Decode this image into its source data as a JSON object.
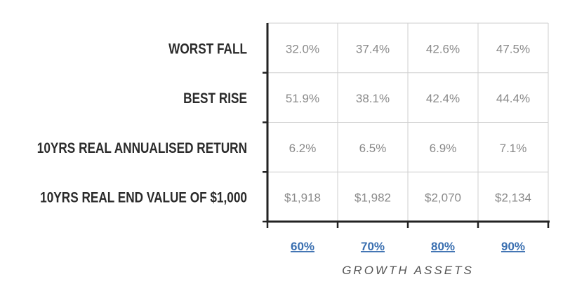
{
  "chart_data": {
    "type": "table",
    "row_labels": [
      "WORST FALL",
      "BEST RISE",
      "10YRS REAL ANNUALISED RETURN",
      "10YRS REAL END VALUE OF $1,000"
    ],
    "columns": [
      "60%",
      "70%",
      "80%",
      "90%"
    ],
    "cells": [
      [
        "32.0%",
        "37.4%",
        "42.6%",
        "47.5%"
      ],
      [
        "51.9%",
        "38.1%",
        "42.4%",
        "44.4%"
      ],
      [
        "6.2%",
        "6.5%",
        "6.9%",
        "7.1%"
      ],
      [
        "$1,918",
        "$1,982",
        "$2,070",
        "$2,134"
      ]
    ],
    "xlabel": "GROWTH ASSETS",
    "colors": {
      "row_label": "#2b2b2b",
      "cell_text": "#8a8a8a",
      "grid": "#cfcfcf",
      "axis": "#222222",
      "column_label": "#3a6fb0",
      "axis_title": "#555555"
    }
  }
}
